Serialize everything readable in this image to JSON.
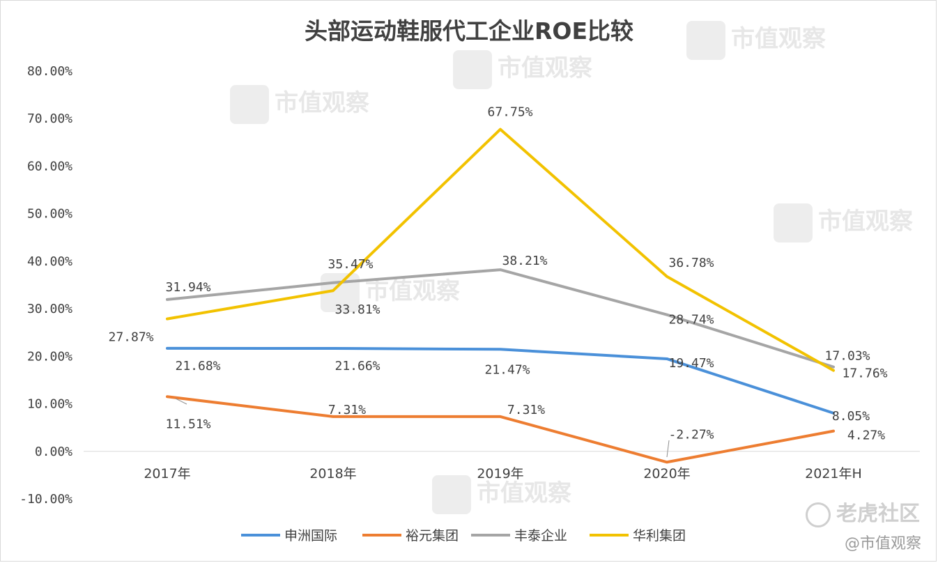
{
  "chart_data": {
    "type": "line",
    "title": "头部运动鞋服代工企业ROE比较",
    "categories": [
      "2017年",
      "2018年",
      "2019年",
      "2020年",
      "2021年H"
    ],
    "ylim": [
      -10,
      80
    ],
    "yticks": [
      "80.00%",
      "70.00%",
      "60.00%",
      "50.00%",
      "40.00%",
      "30.00%",
      "20.00%",
      "10.00%",
      "0.00%",
      "-10.00%"
    ],
    "ytick_values": [
      80,
      70,
      60,
      50,
      40,
      30,
      20,
      10,
      0,
      -10
    ],
    "grid": false,
    "legend_position": "bottom",
    "series": [
      {
        "name": "申洲国际",
        "color": "#4a90d9",
        "values": [
          21.68,
          21.66,
          21.47,
          19.47,
          8.05
        ],
        "labels": [
          "21.68%",
          "21.66%",
          "21.47%",
          "19.47%",
          "8.05%"
        ]
      },
      {
        "name": "裕元集团",
        "color": "#ed7d31",
        "values": [
          11.51,
          7.31,
          7.31,
          -2.27,
          4.27
        ],
        "labels": [
          "11.51%",
          "7.31%",
          "7.31%",
          "-2.27%",
          "4.27%"
        ]
      },
      {
        "name": "丰泰企业",
        "color": "#a5a5a5",
        "values": [
          31.94,
          35.47,
          38.21,
          28.74,
          17.76
        ],
        "labels": [
          "31.94%",
          "35.47%",
          "38.21%",
          "28.74%",
          "17.76%"
        ]
      },
      {
        "name": "华利集团",
        "color": "#f2c200",
        "values": [
          27.87,
          33.81,
          67.75,
          36.78,
          17.03
        ],
        "labels": [
          "27.87%",
          "33.81%",
          "67.75%",
          "36.78%",
          "17.03%"
        ]
      }
    ]
  },
  "watermark": {
    "brand": "市值观察",
    "site": "老虎社区",
    "source": "@市值观察"
  }
}
